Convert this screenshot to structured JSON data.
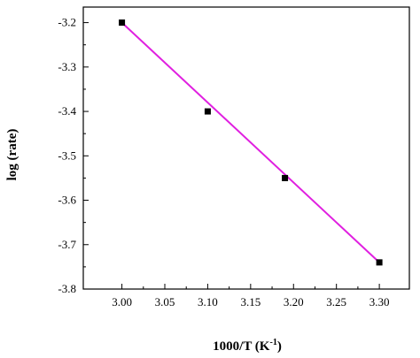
{
  "chart_data": {
    "type": "scatter",
    "title": "",
    "xlabel": "1000/T (K",
    "xlabel_sup": "-1",
    "xlabel_suffix": ")",
    "ylabel": "log (rate)",
    "xlim": [
      2.955,
      3.335
    ],
    "ylim": [
      -3.8,
      -3.165
    ],
    "xticks": [
      3.0,
      3.05,
      3.1,
      3.15,
      3.2,
      3.25,
      3.3
    ],
    "xtick_labels": [
      "3.00",
      "3.05",
      "3.10",
      "3.15",
      "3.20",
      "3.25",
      "3.30"
    ],
    "yticks": [
      -3.2,
      -3.3,
      -3.4,
      -3.5,
      -3.6,
      -3.7,
      -3.8
    ],
    "ytick_labels": [
      "-3.2",
      "-3.3",
      "-3.4",
      "-3.5",
      "-3.6",
      "-3.7",
      "-3.8"
    ],
    "grid": false,
    "series": [
      {
        "marker": "square",
        "color": "#000000",
        "x": [
          3.0,
          3.1,
          3.19,
          3.3
        ],
        "y": [
          -3.2,
          -3.4,
          -3.55,
          -3.74
        ]
      }
    ],
    "fit_line": {
      "color": "#e020e0",
      "x": [
        3.0,
        3.3
      ],
      "y": [
        -3.2,
        -3.74
      ]
    }
  }
}
